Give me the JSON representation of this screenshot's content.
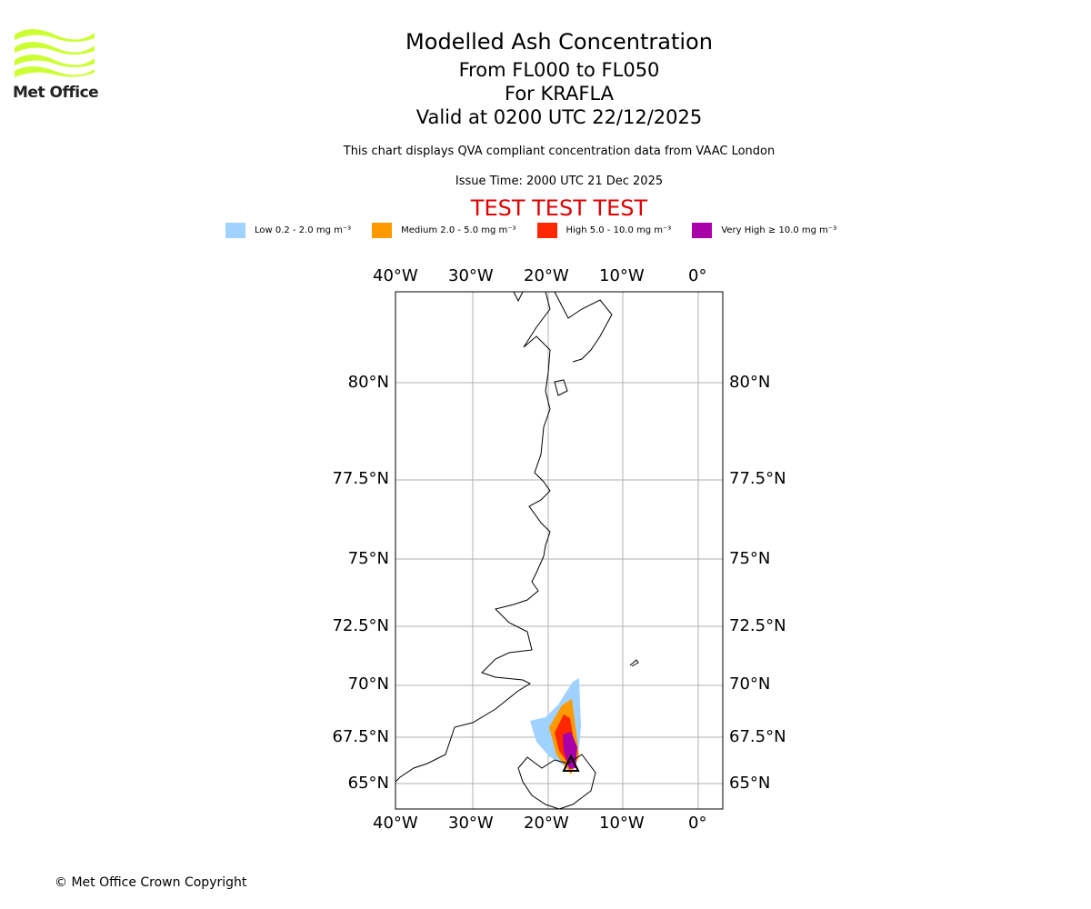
{
  "logo": {
    "text": "Met Office",
    "color": "#ccff33"
  },
  "title": "Modelled Ash Concentration",
  "levels": "From FL000 to FL050",
  "volcano": "For KRAFLA",
  "valid": "Valid at 0200 UTC 22/12/2025",
  "subtitle": "This chart displays QVA compliant concentration data from VAAC London",
  "issue_time": "Issue Time: 2000 UTC 21 Dec 2025",
  "test_banner": "TEST TEST TEST",
  "legend": [
    {
      "label": "Low 0.2 - 2.0 mg m⁻³",
      "color": "#a0d2ff"
    },
    {
      "label": "Medium 2.0 - 5.0 mg m⁻³",
      "color": "#ff9900"
    },
    {
      "label": "High 5.0 - 10.0 mg m⁻³",
      "color": "#ff2800"
    },
    {
      "label": "Very High ≥ 10.0 mg m⁻³",
      "color": "#aa00aa"
    }
  ],
  "lon_ticks": [
    "40°W",
    "30°W",
    "20°W",
    "10°W",
    "0°"
  ],
  "lat_ticks": [
    "80°N",
    "77.5°N",
    "75°N",
    "72.5°N",
    "70°N",
    "67.5°N",
    "65°N"
  ],
  "copyright": "© Met Office Crown Copyright"
}
